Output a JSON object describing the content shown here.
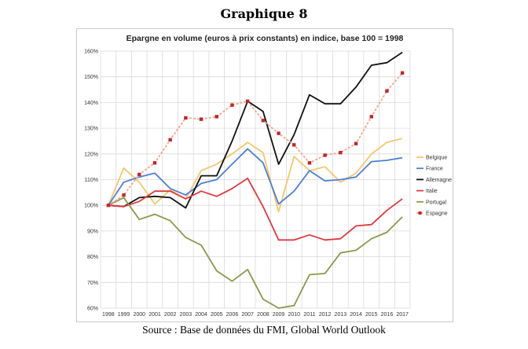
{
  "figure": {
    "heading": "Graphique 8",
    "source": "Source : Base de données du FMI, Global World Outlook"
  },
  "chart_data": {
    "type": "line",
    "title": "Epargne en volume (euros à prix constants) en indice, base 100 = 1998",
    "xlabel": "",
    "ylabel": "",
    "x": [
      1998,
      1999,
      2000,
      2001,
      2002,
      2003,
      2004,
      2005,
      2006,
      2007,
      2008,
      2009,
      2010,
      2011,
      2012,
      2013,
      2014,
      2015,
      2016,
      2017
    ],
    "ylim": [
      60,
      160
    ],
    "yticks": [
      60,
      70,
      80,
      90,
      100,
      110,
      120,
      130,
      140,
      150,
      160
    ],
    "ytick_labels": [
      "60%",
      "70%",
      "80%",
      "90%",
      "100%",
      "110%",
      "120%",
      "130%",
      "140%",
      "150%",
      "160%"
    ],
    "grid": true,
    "legend_position": "right",
    "series": [
      {
        "name": "Belgique",
        "color": "#f5c76a",
        "marker": "none",
        "values": [
          100,
          114.5,
          109,
          100.5,
          106,
          102.5,
          113.5,
          116,
          120,
          124.5,
          120.5,
          97.5,
          119,
          113.5,
          115,
          109,
          112.5,
          120,
          124.5,
          126
        ]
      },
      {
        "name": "France",
        "color": "#4f7fd4",
        "marker": "none",
        "values": [
          100,
          109,
          111,
          112.5,
          106.5,
          104,
          108.5,
          110,
          116,
          122,
          116.5,
          100.5,
          105.5,
          113.5,
          109.5,
          110,
          111,
          117,
          117.5,
          118.5
        ]
      },
      {
        "name": "Allemagne",
        "color": "#111111",
        "marker": "none",
        "values": [
          100,
          99.5,
          103,
          103.5,
          103,
          99,
          111.5,
          111.5,
          125,
          140.5,
          136.5,
          116,
          127.5,
          143,
          139.5,
          139.5,
          146,
          154.5,
          155.5,
          159.5
        ]
      },
      {
        "name": "Italie",
        "color": "#e0383f",
        "marker": "none",
        "values": [
          100,
          99.5,
          101.5,
          105.5,
          105.5,
          102.5,
          105.5,
          103.5,
          106.5,
          110.5,
          99.5,
          86.5,
          86.5,
          88.5,
          86.5,
          87,
          92,
          92.5,
          98,
          102.5
        ]
      },
      {
        "name": "Portugal",
        "color": "#8a9a4c",
        "marker": "none",
        "values": [
          100,
          103,
          94.5,
          96.5,
          94,
          87.5,
          84.5,
          74.5,
          70.5,
          75,
          63.5,
          60,
          61,
          73,
          73.5,
          81.5,
          82.5,
          87,
          89.5,
          95.5
        ]
      },
      {
        "name": "Espagne",
        "color": "#f4a58a",
        "dash": "3,2",
        "marker": "square",
        "marker_color": "#c0272d",
        "values": [
          100,
          104,
          112,
          116.5,
          125.5,
          134,
          133.5,
          134.5,
          139,
          140.5,
          133,
          128,
          123.5,
          116.5,
          119.5,
          120.5,
          124,
          134.5,
          144.5,
          151.5
        ]
      }
    ]
  }
}
